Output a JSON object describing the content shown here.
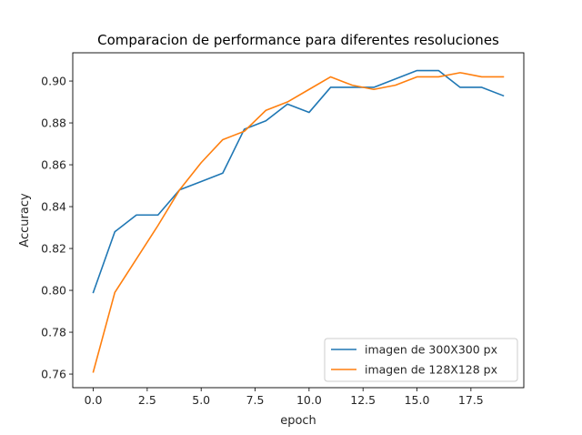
{
  "chart_data": {
    "type": "line",
    "title": "Comparacion de performance para diferentes resoluciones",
    "xlabel": "epoch",
    "ylabel": "Accuracy",
    "xlim": [
      -0.95,
      19.95
    ],
    "ylim": [
      0.7535,
      0.9135
    ],
    "xticks": [
      0,
      2.5,
      5,
      7.5,
      10,
      12.5,
      15,
      17.5
    ],
    "xtick_labels": [
      "0.0",
      "2.5",
      "5.0",
      "7.5",
      "10.0",
      "12.5",
      "15.0",
      "17.5"
    ],
    "yticks": [
      0.76,
      0.78,
      0.8,
      0.82,
      0.84,
      0.86,
      0.88,
      0.9
    ],
    "ytick_labels": [
      "0.76",
      "0.78",
      "0.80",
      "0.82",
      "0.84",
      "0.86",
      "0.88",
      "0.90"
    ],
    "grid": false,
    "legend_position": "bottom-right",
    "x": [
      0,
      1,
      2,
      3,
      4,
      5,
      6,
      7,
      8,
      9,
      10,
      11,
      12,
      13,
      14,
      15,
      16,
      17,
      18,
      19
    ],
    "series": [
      {
        "name": "imagen de 300X300 px",
        "color": "#1f77b4",
        "values": [
          0.799,
          0.828,
          0.836,
          0.836,
          0.848,
          0.852,
          0.856,
          0.877,
          0.881,
          0.889,
          0.885,
          0.897,
          0.897,
          0.897,
          0.901,
          0.905,
          0.905,
          0.897,
          0.897,
          0.893
        ]
      },
      {
        "name": "imagen de 128X128 px",
        "color": "#ff7f0e",
        "values": [
          0.761,
          0.799,
          0.815,
          0.831,
          0.848,
          0.861,
          0.872,
          0.876,
          0.886,
          0.89,
          0.896,
          0.902,
          0.898,
          0.896,
          0.898,
          0.902,
          0.902,
          0.904,
          0.902,
          0.902
        ]
      }
    ]
  }
}
